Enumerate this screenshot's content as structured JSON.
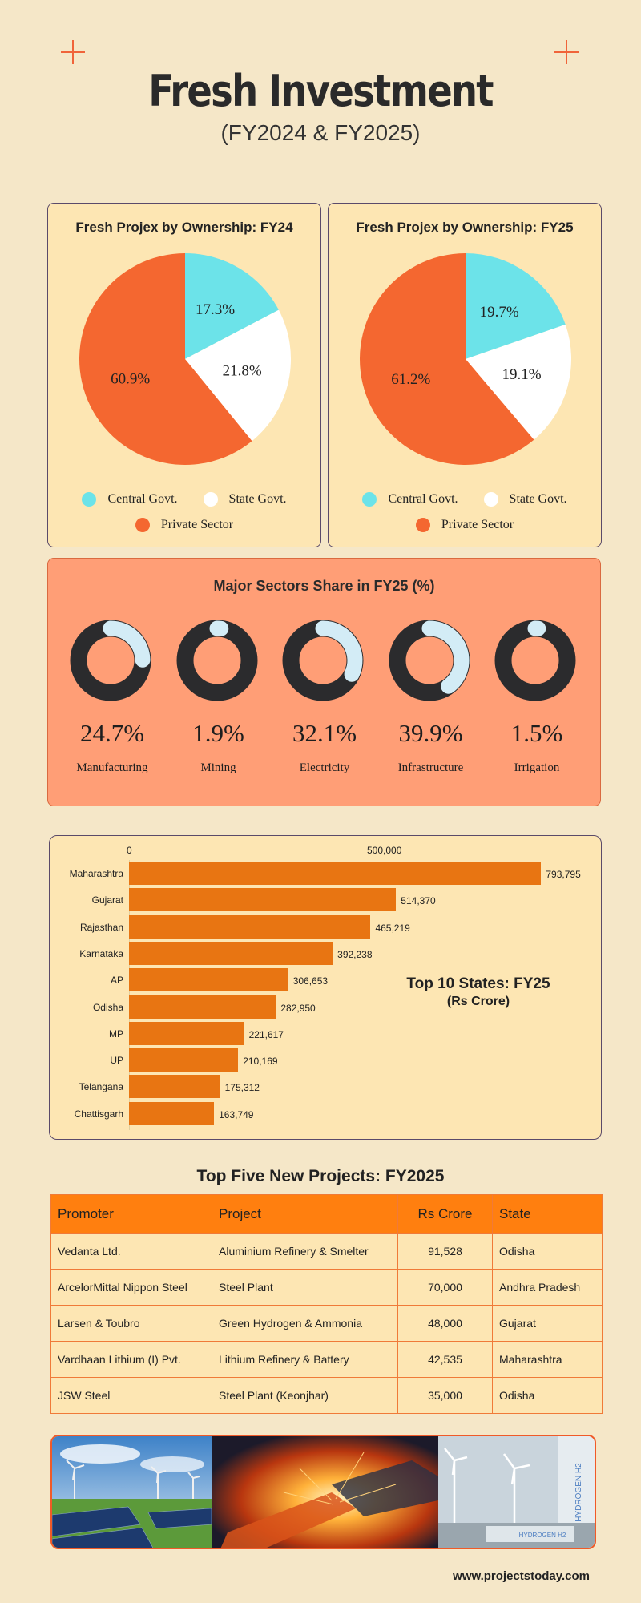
{
  "header": {
    "title": "Fresh Investment",
    "subtitle": "(FY2024 & FY2025)"
  },
  "colors": {
    "central": "#6ce3e9",
    "state": "#ffffff",
    "private": "#f46730",
    "donut_dark": "#2b2b2d",
    "donut_light": "#d3ecf6",
    "bar": "#e87512",
    "accent": "#f0643a"
  },
  "pies": [
    {
      "title": "Fresh Projex by Ownership: FY24",
      "slices": [
        {
          "label": "Central Govt.",
          "value": 17.3,
          "text": "17.3%"
        },
        {
          "label": "State Govt.",
          "value": 21.8,
          "text": "21.8%"
        },
        {
          "label": "Private Sector",
          "value": 60.9,
          "text": "60.9%"
        }
      ]
    },
    {
      "title": "Fresh Projex by Ownership: FY25",
      "slices": [
        {
          "label": "Central Govt.",
          "value": 19.7,
          "text": "19.7%"
        },
        {
          "label": "State Govt.",
          "value": 19.1,
          "text": "19.1%"
        },
        {
          "label": "Private Sector",
          "value": 61.2,
          "text": "61.2%"
        }
      ]
    }
  ],
  "legend": {
    "central": "Central Govt.",
    "state": "State Govt.",
    "private": "Private Sector"
  },
  "sectors": {
    "title": "Major Sectors Share in FY25 (%)",
    "items": [
      {
        "name": "Manufacturing",
        "value": 24.7,
        "text": "24.7%"
      },
      {
        "name": "Mining",
        "value": 1.9,
        "text": "1.9%"
      },
      {
        "name": "Electricity",
        "value": 32.1,
        "text": "32.1%"
      },
      {
        "name": "Infrastructure",
        "value": 39.9,
        "text": "39.9%"
      },
      {
        "name": "Irrigation",
        "value": 1.5,
        "text": "1.5%"
      }
    ]
  },
  "states": {
    "title": "Top 10 States: FY25",
    "subtitle": "(Rs Crore)",
    "ticks": [
      "0",
      "500,000"
    ]
  },
  "chart_data": [
    {
      "type": "pie",
      "title": "Fresh Projex by Ownership: FY24",
      "categories": [
        "Central Govt.",
        "State Govt.",
        "Private Sector"
      ],
      "values": [
        17.3,
        21.8,
        60.9
      ]
    },
    {
      "type": "pie",
      "title": "Fresh Projex by Ownership: FY25",
      "categories": [
        "Central Govt.",
        "State Govt.",
        "Private Sector"
      ],
      "values": [
        19.7,
        19.1,
        61.2
      ]
    },
    {
      "type": "pie",
      "title": "Major Sectors Share in FY25 (%)",
      "categories": [
        "Manufacturing",
        "Mining",
        "Electricity",
        "Infrastructure",
        "Irrigation"
      ],
      "values": [
        24.7,
        1.9,
        32.1,
        39.9,
        1.5
      ]
    },
    {
      "type": "bar",
      "title": "Top 10 States: FY25",
      "subtitle": "(Rs Crore)",
      "orientation": "horizontal",
      "categories": [
        "Maharashtra",
        "Gujarat",
        "Rajasthan",
        "Karnataka",
        "AP",
        "Odisha",
        "MP",
        "UP",
        "Telangana",
        "Chattisgarh"
      ],
      "values": [
        793795,
        514370,
        465219,
        392238,
        306653,
        282950,
        221617,
        210169,
        175312,
        163749
      ],
      "labels": [
        "793,795",
        "514,370",
        "465,219",
        "392,238",
        "306,653",
        "282,950",
        "221,617",
        "210,169",
        "175,312",
        "163,749"
      ],
      "xlim": [
        0,
        800000
      ],
      "xticks": [
        0,
        500000
      ],
      "grid": true
    }
  ],
  "projects": {
    "title": "Top Five New Projects: FY2025",
    "headers": [
      "Promoter",
      "Project",
      "Rs Crore",
      "State"
    ],
    "rows": [
      [
        "Vedanta Ltd.",
        "Aluminium Refinery & Smelter",
        "91,528",
        "Odisha"
      ],
      [
        "ArcelorMittal Nippon Steel",
        "Steel Plant",
        "70,000",
        "Andhra Pradesh"
      ],
      [
        "Larsen & Toubro",
        "Green Hydrogen & Ammonia",
        "48,000",
        "Gujarat"
      ],
      [
        "Vardhaan Lithium (I) Pvt.",
        "Lithium Refinery & Battery",
        "42,535",
        "Maharashtra"
      ],
      [
        "JSW Steel",
        "Steel Plant (Keonjhar)",
        "35,000",
        "Odisha"
      ]
    ]
  },
  "photos": {
    "labels": [
      "HYDROGEN H2"
    ]
  },
  "footer": "www.projectstoday.com"
}
